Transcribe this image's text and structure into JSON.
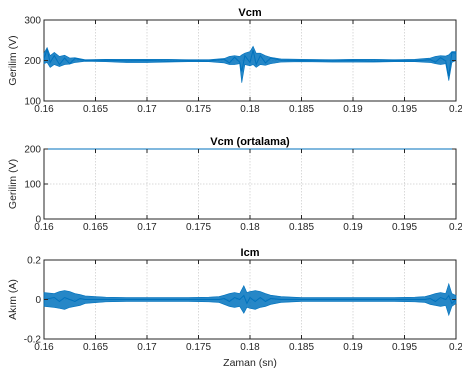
{
  "colors": {
    "series": "#0072bd",
    "axis": "#262626",
    "grid": "#d9d9d9"
  },
  "chart_data": [
    {
      "type": "line",
      "title": "Vcm",
      "xlabel": "",
      "ylabel": "Gerilim (V)",
      "xlim": [
        0.16,
        0.2
      ],
      "ylim": [
        100,
        300
      ],
      "xticks": [
        0.16,
        0.165,
        0.17,
        0.175,
        0.18,
        0.185,
        0.19,
        0.195,
        0.2
      ],
      "xticklabels": [
        "0.16",
        "0.165",
        "0.17",
        "0.175",
        "0.18",
        "0.185",
        "0.19",
        "0.195",
        "0.2"
      ],
      "yticks": [
        100,
        200,
        300
      ],
      "yticklabels": [
        "100",
        "200",
        "300"
      ],
      "grid": true,
      "series": [
        {
          "x": [
            0.16,
            0.1603,
            0.1606,
            0.161,
            0.1615,
            0.162,
            0.1625,
            0.163,
            0.164,
            0.166,
            0.168,
            0.17,
            0.172,
            0.174,
            0.176,
            0.1775,
            0.178,
            0.1785,
            0.179,
            0.1792,
            0.1795,
            0.18,
            0.1803,
            0.1806,
            0.181,
            0.1815,
            0.182,
            0.183,
            0.185,
            0.188,
            0.19,
            0.192,
            0.194,
            0.196,
            0.1975,
            0.198,
            0.1985,
            0.199,
            0.1993,
            0.1996,
            0.2
          ],
          "y": [
            203,
            228,
            195,
            212,
            190,
            206,
            192,
            205,
            200,
            201,
            199,
            200,
            198,
            200,
            199,
            203,
            194,
            208,
            196,
            173,
            212,
            195,
            226,
            190,
            212,
            194,
            206,
            201,
            200,
            199,
            200,
            198,
            200,
            199,
            202,
            196,
            207,
            199,
            162,
            220,
            218
          ],
          "min": [
            192,
            195,
            183,
            190,
            185,
            190,
            191,
            195,
            198,
            197,
            195,
            195,
            196,
            197,
            197,
            194,
            190,
            190,
            192,
            145,
            190,
            187,
            190,
            183,
            190,
            188,
            192,
            196,
            197,
            196,
            196,
            196,
            197,
            197,
            195,
            192,
            190,
            192,
            150,
            195,
            200
          ],
          "max": [
            218,
            232,
            212,
            220,
            210,
            213,
            206,
            207,
            202,
            203,
            203,
            203,
            203,
            202,
            202,
            205,
            210,
            212,
            210,
            214,
            218,
            222,
            235,
            218,
            218,
            212,
            208,
            204,
            203,
            202,
            203,
            203,
            202,
            203,
            206,
            210,
            212,
            211,
            214,
            222,
            222
          ]
        }
      ]
    },
    {
      "type": "line",
      "title": "Vcm (ortalama)",
      "xlabel": "",
      "ylabel": "Gerilim (V)",
      "xlim": [
        0.16,
        0.2
      ],
      "ylim": [
        0,
        200
      ],
      "xticks": [
        0.16,
        0.165,
        0.17,
        0.175,
        0.18,
        0.185,
        0.19,
        0.195,
        0.2
      ],
      "xticklabels": [
        "0.16",
        "0.165",
        "0.17",
        "0.175",
        "0.18",
        "0.185",
        "0.19",
        "0.195",
        "0.2"
      ],
      "yticks": [
        0,
        100,
        200
      ],
      "yticklabels": [
        "0",
        "100",
        "200"
      ],
      "grid": true,
      "series": [
        {
          "x": [
            0.16,
            0.2
          ],
          "y": [
            200,
            200
          ]
        }
      ]
    },
    {
      "type": "line",
      "title": "Icm",
      "xlabel": "Zaman (sn)",
      "ylabel": "Akım (A)",
      "xlim": [
        0.16,
        0.2
      ],
      "ylim": [
        -0.2,
        0.2
      ],
      "xticks": [
        0.16,
        0.165,
        0.17,
        0.175,
        0.18,
        0.185,
        0.19,
        0.195,
        0.2
      ],
      "xticklabels": [
        "0.16",
        "0.165",
        "0.17",
        "0.175",
        "0.18",
        "0.185",
        "0.19",
        "0.195",
        "0.2"
      ],
      "yticks": [
        -0.2,
        0,
        0.2
      ],
      "yticklabels": [
        "-0.2",
        "0",
        "0.2"
      ],
      "grid": true,
      "series": [
        {
          "x": [
            0.16,
            0.161,
            0.1615,
            0.162,
            0.1625,
            0.163,
            0.1635,
            0.164,
            0.166,
            0.168,
            0.17,
            0.172,
            0.174,
            0.176,
            0.177,
            0.1775,
            0.178,
            0.1785,
            0.179,
            0.1794,
            0.1797,
            0.18,
            0.1805,
            0.181,
            0.1815,
            0.182,
            0.183,
            0.185,
            0.188,
            0.19,
            0.192,
            0.194,
            0.196,
            0.197,
            0.1975,
            0.198,
            0.1985,
            0.199,
            0.1993,
            0.1996,
            0.2
          ],
          "y": [
            0,
            0.01,
            -0.01,
            0.01,
            0,
            -0.01,
            0.005,
            0,
            0,
            0,
            0,
            0,
            0,
            0,
            0,
            0.005,
            -0.01,
            0.01,
            0,
            0.02,
            -0.02,
            0.01,
            -0.01,
            0.01,
            -0.01,
            0.005,
            0,
            0,
            0,
            0,
            0,
            0,
            0,
            0,
            0.005,
            -0.01,
            0.01,
            0,
            0.02,
            -0.02,
            0
          ],
          "min": [
            -0.035,
            -0.04,
            -0.045,
            -0.05,
            -0.04,
            -0.035,
            -0.03,
            -0.02,
            -0.012,
            -0.01,
            -0.01,
            -0.01,
            -0.01,
            -0.012,
            -0.015,
            -0.025,
            -0.035,
            -0.04,
            -0.035,
            -0.07,
            -0.04,
            -0.045,
            -0.05,
            -0.04,
            -0.035,
            -0.025,
            -0.015,
            -0.01,
            -0.01,
            -0.01,
            -0.01,
            -0.01,
            -0.012,
            -0.015,
            -0.025,
            -0.03,
            -0.035,
            -0.03,
            -0.08,
            -0.035,
            -0.02
          ],
          "max": [
            0.035,
            0.03,
            0.04,
            0.045,
            0.04,
            0.03,
            0.025,
            0.018,
            0.012,
            0.01,
            0.01,
            0.01,
            0.01,
            0.012,
            0.015,
            0.022,
            0.03,
            0.035,
            0.03,
            0.07,
            0.035,
            0.04,
            0.045,
            0.04,
            0.03,
            0.022,
            0.015,
            0.01,
            0.01,
            0.01,
            0.01,
            0.01,
            0.012,
            0.015,
            0.022,
            0.03,
            0.035,
            0.03,
            0.08,
            0.03,
            0.02
          ]
        }
      ]
    }
  ]
}
